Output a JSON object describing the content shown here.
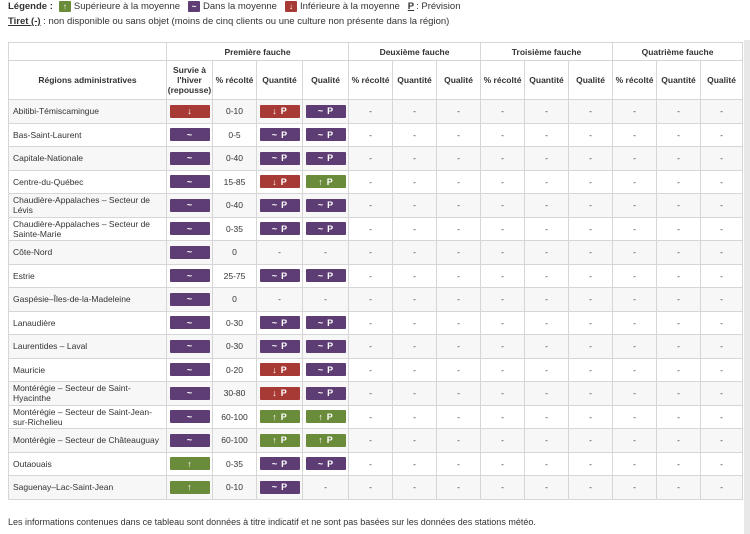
{
  "legend": {
    "title": "Légende :",
    "items": [
      {
        "symbol": "↑",
        "label": "Supérieure à la moyenne",
        "color": "#6a8c3a"
      },
      {
        "symbol": "~",
        "label": "Dans la moyenne",
        "color": "#5e3d75"
      },
      {
        "symbol": "↓",
        "label": "Inférieure à la moyenne",
        "color": "#a83a36"
      }
    ],
    "p_symbol": "P",
    "p_label": ": Prévision"
  },
  "note": {
    "bold": "Tiret (-)",
    "text": " : non disponible ou sans objet (moins de cinq clients ou une culture non présente dans la région)"
  },
  "table": {
    "region_header": "Régions administratives",
    "groups": [
      "Première fauche",
      "Deuxième fauche",
      "Troisième fauche",
      "Quatrième fauche"
    ],
    "survie_header": "Survie à l'hiver (repousse)",
    "col_recolte": "% récolté",
    "col_quantite": "Quantité",
    "col_qualite": "Qualité",
    "rows": [
      {
        "region": "Abitibi-Témiscamingue",
        "survie": "down",
        "recolte": "0-10",
        "quantite": "down",
        "qualite": "avg"
      },
      {
        "region": "Bas-Saint-Laurent",
        "survie": "avg",
        "recolte": "0-5",
        "quantite": "avg",
        "qualite": "avg"
      },
      {
        "region": "Capitale-Nationale",
        "survie": "avg",
        "recolte": "0-40",
        "quantite": "avg",
        "qualite": "avg"
      },
      {
        "region": "Centre-du-Québec",
        "survie": "avg",
        "recolte": "15-85",
        "quantite": "down",
        "qualite": "up"
      },
      {
        "region": "Chaudière-Appalaches – Secteur de Lévis",
        "survie": "avg",
        "recolte": "0-40",
        "quantite": "avg",
        "qualite": "avg"
      },
      {
        "region": "Chaudière-Appalaches – Secteur de Sainte-Marie",
        "survie": "avg",
        "recolte": "0-35",
        "quantite": "avg",
        "qualite": "avg"
      },
      {
        "region": "Côte-Nord",
        "survie": "avg",
        "recolte": "0",
        "quantite": "none",
        "qualite": "none"
      },
      {
        "region": "Estrie",
        "survie": "avg",
        "recolte": "25-75",
        "quantite": "avg",
        "qualite": "avg"
      },
      {
        "region": "Gaspésie–Îles-de-la-Madeleine",
        "survie": "avg",
        "recolte": "0",
        "quantite": "none",
        "qualite": "none"
      },
      {
        "region": "Lanaudière",
        "survie": "avg",
        "recolte": "0-30",
        "quantite": "avg",
        "qualite": "avg"
      },
      {
        "region": "Laurentides – Laval",
        "survie": "avg",
        "recolte": "0-30",
        "quantite": "avg",
        "qualite": "avg"
      },
      {
        "region": "Mauricie",
        "survie": "avg",
        "recolte": "0-20",
        "quantite": "down",
        "qualite": "avg"
      },
      {
        "region": "Montérégie – Secteur de Saint-Hyacinthe",
        "survie": "avg",
        "recolte": "30-80",
        "quantite": "down",
        "qualite": "avg"
      },
      {
        "region": "Montérégie – Secteur de Saint-Jean-sur-Richelieu",
        "survie": "avg",
        "recolte": "60-100",
        "quantite": "up",
        "qualite": "up"
      },
      {
        "region": "Montérégie – Secteur de Châteauguay",
        "survie": "avg",
        "recolte": "60-100",
        "quantite": "up",
        "qualite": "up"
      },
      {
        "region": "Outaouais",
        "survie": "up",
        "recolte": "0-35",
        "quantite": "avg",
        "qualite": "avg"
      },
      {
        "region": "Saguenay–Lac-Saint-Jean",
        "survie": "up",
        "recolte": "0-10",
        "quantite": "avg",
        "qualite": "none"
      }
    ],
    "dash": "-"
  },
  "footer": "Les informations contenues dans ce tableau sont données à titre indicatif et ne sont pas basées sur les données des stations météo."
}
